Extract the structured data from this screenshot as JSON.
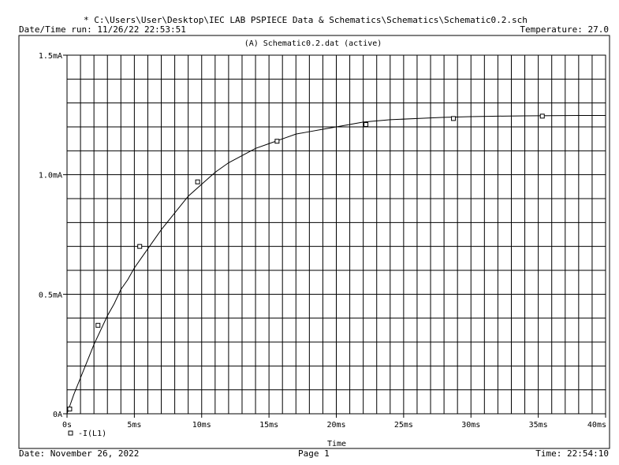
{
  "header": {
    "file_path": "* C:\\Users\\User\\Desktop\\IEC LAB PSPIECE Data & Schematics\\Schematics\\Schematic0.2.sch",
    "run_datetime": "Date/Time run: 11/26/22 22:53:51",
    "temperature": "Temperature: 27.0"
  },
  "footer": {
    "date": "Date: November 26, 2022",
    "page": "Page 1",
    "time": "Time: 22:54:10"
  },
  "chart_data": {
    "type": "line",
    "title": "(A) Schematic0.2.dat (active)",
    "xlabel": "Time",
    "ylabel": "",
    "xlim": [
      0,
      40
    ],
    "ylim": [
      0,
      1.5
    ],
    "x_unit": "ms",
    "y_unit": "mA",
    "x_ticks": [
      0,
      5,
      10,
      15,
      20,
      25,
      30,
      35,
      40
    ],
    "x_tick_labels": [
      "0s",
      "5ms",
      "10ms",
      "15ms",
      "20ms",
      "25ms",
      "30ms",
      "35ms",
      "40ms"
    ],
    "y_ticks": [
      0,
      0.5,
      1.0,
      1.5
    ],
    "y_tick_labels": [
      "0A",
      "0.5mA",
      "1.0mA",
      "1.5mA"
    ],
    "grid": true,
    "x_minor_grid_step": 1,
    "y_minor_grid_step": 0.1,
    "legend": "bottom-left",
    "series": [
      {
        "name": "-I(L1)",
        "x": [
          0,
          0.25,
          0.5,
          1,
          1.5,
          2,
          2.5,
          3,
          3.5,
          4,
          4.5,
          5,
          5.5,
          6,
          7,
          8,
          9,
          10,
          11,
          12,
          13,
          14,
          15,
          16,
          17,
          18,
          19,
          20,
          22,
          24,
          26,
          28,
          30,
          32,
          34,
          36,
          38,
          40
        ],
        "values": [
          0,
          0.04,
          0.08,
          0.15,
          0.22,
          0.29,
          0.35,
          0.41,
          0.46,
          0.52,
          0.56,
          0.61,
          0.65,
          0.69,
          0.77,
          0.84,
          0.91,
          0.96,
          1.01,
          1.05,
          1.08,
          1.11,
          1.13,
          1.15,
          1.17,
          1.18,
          1.19,
          1.2,
          1.22,
          1.23,
          1.235,
          1.24,
          1.243,
          1.245,
          1.246,
          1.247,
          1.248,
          1.248
        ],
        "markers_x": [
          0.2,
          2.3,
          5.4,
          9.7,
          15.6,
          22.2,
          28.7,
          35.3
        ],
        "markers_y": [
          0.02,
          0.37,
          0.7,
          0.97,
          1.14,
          1.21,
          1.235,
          1.245
        ]
      }
    ]
  }
}
